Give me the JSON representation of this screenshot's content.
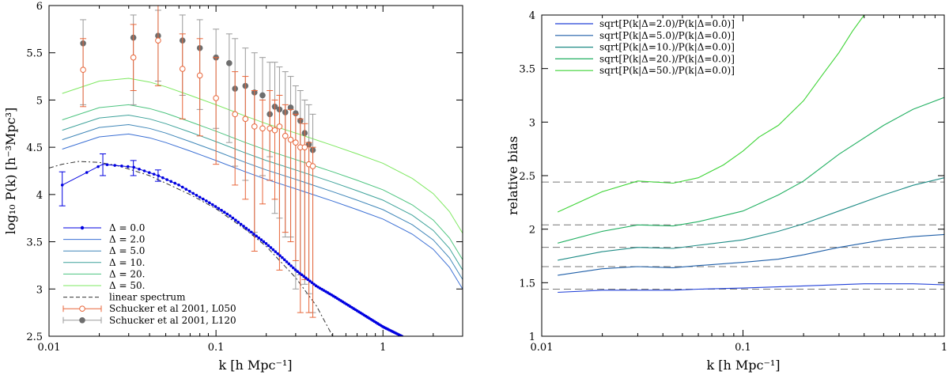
{
  "chart_data": [
    {
      "type": "line",
      "panel": "left",
      "xlabel": "k [h Mpc⁻¹]",
      "ylabel": "log₁₀ P(k) [h⁻³Mpc³]",
      "xscale": "log",
      "xlim": [
        0.01,
        3
      ],
      "ylim": [
        2.5,
        6
      ],
      "xticks": [
        {
          "v": 0.01,
          "label": "0.01"
        },
        {
          "v": 0.1,
          "label": "0.1"
        },
        {
          "v": 1,
          "label": "1"
        }
      ],
      "yticks": [
        {
          "v": 2.5,
          "label": "2.5"
        },
        {
          "v": 3,
          "label": "3"
        },
        {
          "v": 3.5,
          "label": "3.5"
        },
        {
          "v": 4,
          "label": "4"
        },
        {
          "v": 4.5,
          "label": "4.5"
        },
        {
          "v": 5,
          "label": "5"
        },
        {
          "v": 5.5,
          "label": "5.5"
        },
        {
          "v": 6,
          "label": "6"
        }
      ],
      "legend_position": "bottom-left",
      "base_curve": {
        "name": "Δ = 0.0",
        "color": "#0000e0",
        "x": [
          0.012,
          0.021,
          0.032,
          0.045,
          0.06,
          0.075,
          0.09,
          0.1,
          0.12,
          0.15,
          0.2,
          0.25,
          0.3,
          0.4,
          0.5,
          0.7,
          1.0,
          1.3
        ],
        "y": [
          4.1,
          4.32,
          4.29,
          4.2,
          4.1,
          4.0,
          3.92,
          3.87,
          3.78,
          3.65,
          3.48,
          3.33,
          3.2,
          3.03,
          2.93,
          2.77,
          2.6,
          2.5
        ]
      },
      "base_errors": {
        "x": [
          0.012,
          0.021,
          0.032,
          0.045
        ],
        "lo": [
          3.88,
          4.2,
          4.2,
          4.14
        ],
        "hi": [
          4.24,
          4.43,
          4.36,
          4.26
        ]
      },
      "model_curves": {
        "x": [
          0.012,
          0.02,
          0.03,
          0.04,
          0.05,
          0.07,
          0.1,
          0.15,
          0.2,
          0.3,
          0.5,
          0.7,
          1.0,
          1.5,
          2.0,
          2.5,
          3.0
        ],
        "y": [
          4.48,
          4.61,
          4.64,
          4.6,
          4.55,
          4.46,
          4.36,
          4.24,
          4.16,
          4.06,
          3.93,
          3.84,
          3.74,
          3.58,
          3.42,
          3.23,
          3.0
        ],
        "series": [
          {
            "name": "Δ = 2.0",
            "offset": 0.0,
            "color": "#3a6fd4"
          },
          {
            "name": "Δ = 5.0",
            "offset": 0.1,
            "color": "#3f86b8"
          },
          {
            "name": "Δ = 10.",
            "offset": 0.2,
            "color": "#3ea29a"
          },
          {
            "name": "Δ = 20.",
            "offset": 0.31,
            "color": "#4cc47f"
          },
          {
            "name": "Δ = 50.",
            "offset": 0.59,
            "color": "#7ee860"
          }
        ]
      },
      "linear_spectrum": {
        "name": "linear spectrum",
        "color": "#333333",
        "x": [
          0.01,
          0.012,
          0.015,
          0.02,
          0.025,
          0.03,
          0.04,
          0.05,
          0.07,
          0.1,
          0.15,
          0.2,
          0.3,
          0.4,
          0.5
        ],
        "y": [
          4.28,
          4.32,
          4.35,
          4.34,
          4.31,
          4.27,
          4.2,
          4.12,
          4.0,
          3.85,
          3.63,
          3.45,
          3.12,
          2.82,
          2.5
        ]
      },
      "schucker_L050": {
        "name": "Schucker et al 2001, L050",
        "color": "#e8663a",
        "x": [
          0.016,
          0.032,
          0.045,
          0.063,
          0.08,
          0.1,
          0.13,
          0.15,
          0.17,
          0.19,
          0.21,
          0.225,
          0.24,
          0.26,
          0.28,
          0.3,
          0.32,
          0.34,
          0.36,
          0.38
        ],
        "y": [
          5.32,
          5.45,
          5.63,
          5.33,
          5.26,
          5.02,
          4.85,
          4.8,
          4.72,
          4.7,
          4.7,
          4.68,
          4.72,
          4.62,
          4.58,
          4.55,
          4.5,
          4.5,
          4.32,
          4.3
        ],
        "lo": [
          4.93,
          5.1,
          5.15,
          4.8,
          4.62,
          4.32,
          4.1,
          3.95,
          3.4,
          3.9,
          4.15,
          3.95,
          3.2,
          3.6,
          3.5,
          3.3,
          2.75,
          3.1,
          2.75,
          2.7
        ],
        "hi": [
          5.65,
          5.8,
          6.0,
          5.7,
          5.65,
          5.45,
          5.3,
          5.25,
          5.1,
          5.0,
          5.1,
          5.0,
          5.05,
          4.95,
          4.9,
          4.85,
          4.8,
          4.75,
          4.55,
          4.5
        ]
      },
      "schucker_L120": {
        "name": "Schucker et al 2001, L120",
        "color": "#6e6e6e",
        "x": [
          0.016,
          0.032,
          0.045,
          0.063,
          0.08,
          0.1,
          0.12,
          0.13,
          0.15,
          0.17,
          0.19,
          0.21,
          0.225,
          0.24,
          0.26,
          0.28,
          0.3,
          0.32,
          0.34,
          0.36,
          0.38
        ],
        "y": [
          5.6,
          5.66,
          5.68,
          5.63,
          5.55,
          5.45,
          5.39,
          5.12,
          5.15,
          5.08,
          5.05,
          4.85,
          4.93,
          4.9,
          4.87,
          4.92,
          4.86,
          4.78,
          4.65,
          4.53,
          4.47
        ],
        "lo": [
          4.95,
          4.95,
          5.2,
          5.05,
          4.9,
          4.7,
          4.55,
          4.3,
          4.15,
          3.6,
          4.2,
          4.4,
          3.8,
          3.75,
          3.55,
          3.55,
          3.0,
          3.15,
          3.05,
          2.95,
          2.75
        ],
        "hi": [
          5.85,
          5.9,
          5.95,
          5.9,
          5.85,
          5.75,
          5.7,
          5.65,
          5.55,
          5.5,
          5.45,
          5.4,
          5.4,
          5.35,
          5.3,
          5.25,
          5.15,
          5.1,
          5.0,
          4.95,
          4.85
        ]
      }
    },
    {
      "type": "line",
      "panel": "right",
      "xlabel": "k [h Mpc⁻¹]",
      "ylabel": "relative bias",
      "xscale": "log",
      "xlim": [
        0.01,
        1
      ],
      "ylim": [
        1,
        4
      ],
      "xticks": [
        {
          "v": 0.01,
          "label": "0.01"
        },
        {
          "v": 0.1,
          "label": "0.1"
        },
        {
          "v": 1,
          "label": "1"
        }
      ],
      "yticks": [
        {
          "v": 1,
          "label": "1"
        },
        {
          "v": 1.5,
          "label": "1.5"
        },
        {
          "v": 2,
          "label": "2"
        },
        {
          "v": 2.5,
          "label": "2.5"
        },
        {
          "v": 3,
          "label": "3"
        },
        {
          "v": 3.5,
          "label": "3.5"
        },
        {
          "v": 4,
          "label": "4"
        }
      ],
      "legend_position": "top-left",
      "reference_levels": [
        1.44,
        1.65,
        1.83,
        2.04,
        2.44
      ],
      "series": [
        {
          "name": "sqrt[P(k|Δ=2.0)/P(k|Δ=0.0)]",
          "color": "#2140d8",
          "x": [
            0.012,
            0.02,
            0.03,
            0.045,
            0.06,
            0.1,
            0.2,
            0.4,
            0.7,
            1.0
          ],
          "y": [
            1.41,
            1.43,
            1.43,
            1.43,
            1.44,
            1.45,
            1.47,
            1.49,
            1.49,
            1.48
          ]
        },
        {
          "name": "sqrt[P(k|Δ=5.0)/P(k|Δ=0.0)]",
          "color": "#1f5fa8",
          "x": [
            0.012,
            0.02,
            0.03,
            0.045,
            0.06,
            0.1,
            0.15,
            0.2,
            0.3,
            0.5,
            0.7,
            1.0
          ],
          "y": [
            1.57,
            1.63,
            1.65,
            1.64,
            1.66,
            1.69,
            1.72,
            1.76,
            1.83,
            1.9,
            1.93,
            1.95
          ]
        },
        {
          "name": "sqrt[P(k|Δ=10.)/P(k|Δ=0.0)]",
          "color": "#1f8c86",
          "x": [
            0.012,
            0.02,
            0.03,
            0.045,
            0.06,
            0.1,
            0.15,
            0.2,
            0.3,
            0.5,
            0.7,
            1.0
          ],
          "y": [
            1.71,
            1.79,
            1.83,
            1.82,
            1.85,
            1.9,
            1.98,
            2.05,
            2.17,
            2.32,
            2.41,
            2.48
          ]
        },
        {
          "name": "sqrt[P(k|Δ=20.)/P(k|Δ=0.0)]",
          "color": "#22b062",
          "x": [
            0.012,
            0.02,
            0.03,
            0.045,
            0.06,
            0.1,
            0.15,
            0.2,
            0.3,
            0.5,
            0.7,
            1.0
          ],
          "y": [
            1.87,
            1.98,
            2.04,
            2.03,
            2.07,
            2.17,
            2.32,
            2.45,
            2.7,
            2.97,
            3.12,
            3.23
          ]
        },
        {
          "name": "sqrt[P(k|Δ=50.)/P(k|Δ=0.0)]",
          "color": "#3ed436",
          "x": [
            0.012,
            0.02,
            0.03,
            0.045,
            0.06,
            0.08,
            0.1,
            0.12,
            0.15,
            0.2,
            0.25,
            0.3,
            0.35,
            0.4
          ],
          "y": [
            2.16,
            2.35,
            2.45,
            2.43,
            2.48,
            2.6,
            2.73,
            2.86,
            2.97,
            3.2,
            3.45,
            3.65,
            3.85,
            4.0
          ]
        }
      ]
    }
  ]
}
